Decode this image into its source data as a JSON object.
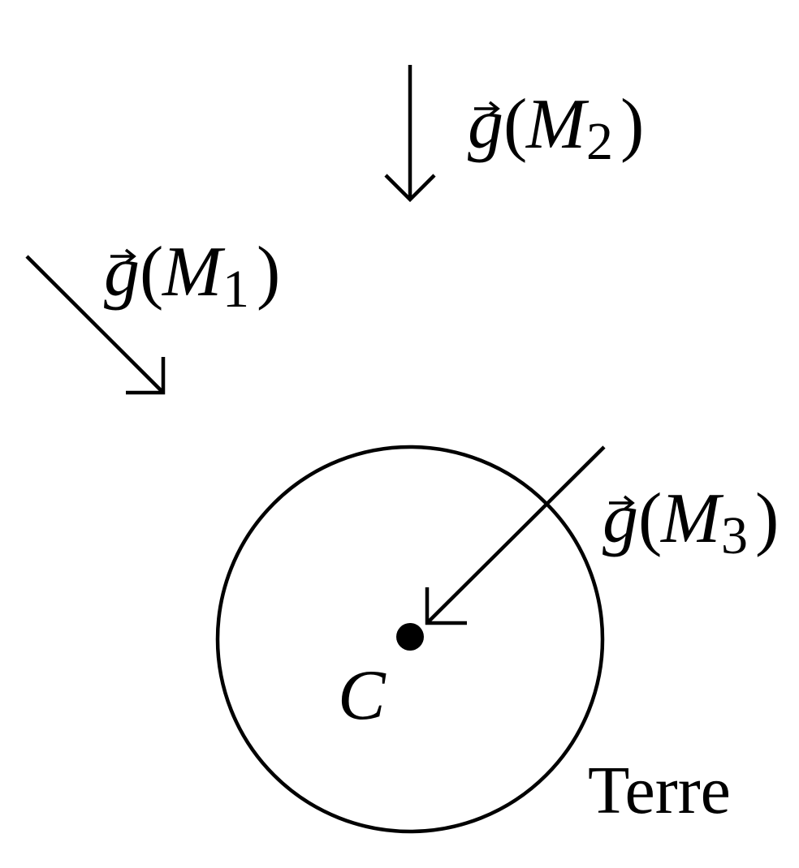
{
  "diagram": {
    "body_label": "Terre",
    "center_label": "C",
    "vectors": [
      {
        "id": "g-m2",
        "symbol": "g",
        "point": "M",
        "index": "2"
      },
      {
        "id": "g-m1",
        "symbol": "g",
        "point": "M",
        "index": "1"
      },
      {
        "id": "g-m3",
        "symbol": "g",
        "point": "M",
        "index": "3"
      }
    ]
  }
}
